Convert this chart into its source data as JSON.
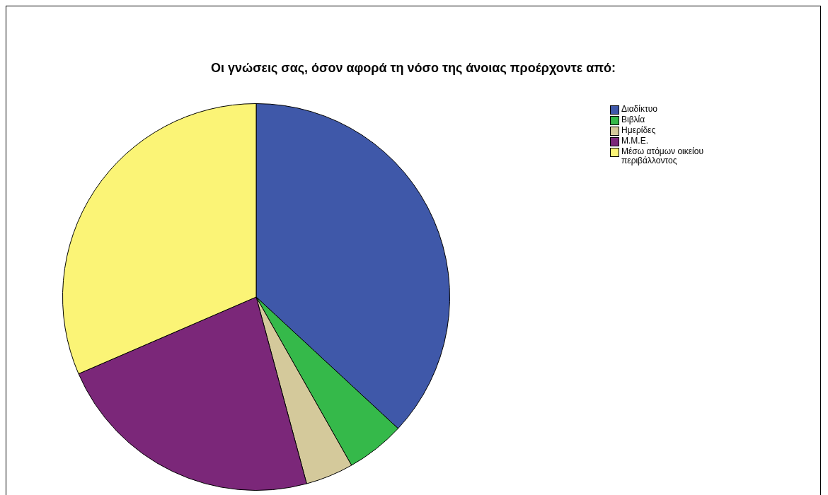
{
  "chart_data": {
    "type": "pie",
    "title": "Οι γνώσεις σας, όσον αφορά τη νόσο της άνοιας προέρχοντε από:",
    "categories": [
      "Διαδίκτυο",
      "Βιβλία",
      "Ημερίδες",
      "Μ.Μ.Ε.",
      "Μέσω ατόμων οικείου περιβάλλοντος"
    ],
    "values": [
      36.9,
      4.9,
      4.0,
      22.7,
      31.5
    ],
    "colors": [
      "#3f58a9",
      "#35b94a",
      "#d4c99b",
      "#7b2779",
      "#fbf476"
    ],
    "legend": "top right"
  }
}
